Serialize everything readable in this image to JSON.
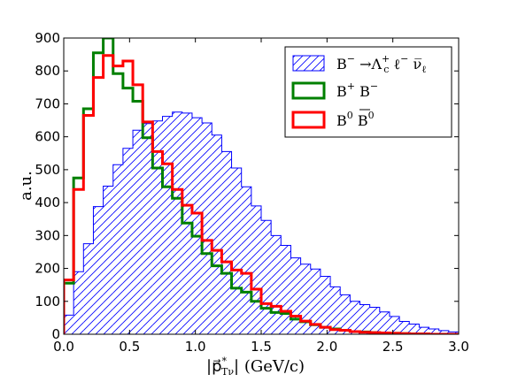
{
  "chart_data": {
    "type": "step-histogram",
    "xlabel": "|p⃗*Tν|   (GeV/c)",
    "xlabel_parts": {
      "main": "|p⃗",
      "sup": "*",
      "sub": "Tν",
      "tail": "|   (GeV/c)"
    },
    "ylabel": "a.u.",
    "xlim": [
      0.0,
      3.0
    ],
    "ylim": [
      0,
      900
    ],
    "xticks": [
      0.0,
      0.5,
      1.0,
      1.5,
      2.0,
      2.5,
      3.0
    ],
    "xtick_labels": [
      "0.0",
      "0.5",
      "1.0",
      "1.5",
      "2.0",
      "2.5",
      "3.0"
    ],
    "yticks": [
      0,
      100,
      200,
      300,
      400,
      500,
      600,
      700,
      800,
      900
    ],
    "ytick_labels": [
      "0",
      "100",
      "200",
      "300",
      "400",
      "500",
      "600",
      "700",
      "800",
      "900"
    ],
    "bin_width": 0.075,
    "legend_position": "top-right",
    "grid": false,
    "series": [
      {
        "name": "B⁻ →Λₕ⁺ ℓ⁻ ν̅ℓ",
        "legend_parts": {
          "base": "B",
          "sup1": "−",
          "arrow": " →Λ",
          "sub2": "c",
          "sup2": "+",
          "ell": " ℓ",
          "sup3": "−",
          "nu": "  ν̅",
          "sub4": "ℓ"
        },
        "style": "hatched",
        "color": "#0000ff",
        "values": [
          58,
          190,
          275,
          388,
          450,
          515,
          565,
          620,
          640,
          648,
          662,
          675,
          672,
          658,
          642,
          605,
          555,
          505,
          448,
          390,
          346,
          300,
          270,
          232,
          213,
          198,
          176,
          144,
          120,
          100,
          90,
          82,
          68,
          54,
          39,
          31,
          21,
          16,
          11,
          7,
          5,
          3,
          2,
          1,
          0,
          0,
          0,
          0,
          0,
          0
        ]
      },
      {
        "name": "B⁺ B⁻",
        "legend_parts": {
          "base": "B",
          "sup1": "+",
          "base2": " B",
          "sup2": "−"
        },
        "style": "step",
        "color": "#008000",
        "values": [
          155,
          475,
          685,
          855,
          900,
          792,
          748,
          708,
          597,
          505,
          448,
          413,
          338,
          298,
          245,
          208,
          185,
          140,
          128,
          100,
          79,
          66,
          63,
          46,
          38,
          29,
          21,
          16,
          12,
          8,
          7,
          5,
          4,
          3,
          2,
          1,
          1,
          0,
          0,
          0
        ]
      },
      {
        "name": "B⁰ B̅⁰",
        "legend_parts": {
          "base": "B",
          "sup1": "0",
          "base2": " B",
          "sup2": "0"
        },
        "style": "step",
        "color": "#ff0000",
        "values": [
          165,
          440,
          665,
          780,
          847,
          815,
          830,
          758,
          645,
          555,
          518,
          440,
          392,
          368,
          285,
          255,
          220,
          195,
          185,
          137,
          93,
          85,
          70,
          55,
          40,
          30,
          21,
          14,
          12,
          8,
          6,
          5,
          4,
          3,
          2,
          1,
          1,
          0,
          0,
          0
        ]
      }
    ]
  }
}
